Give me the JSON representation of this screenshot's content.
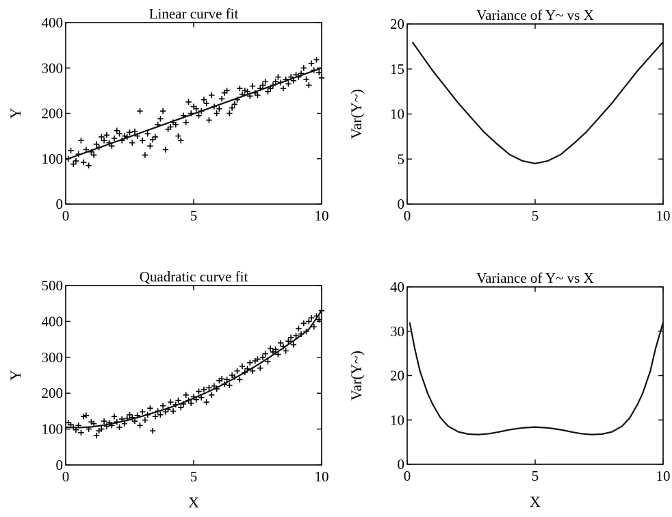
{
  "chart_data": [
    {
      "type": "scatter",
      "title": "Linear curve fit",
      "xlabel": "",
      "ylabel": "Y",
      "xlim": [
        0,
        10
      ],
      "ylim": [
        0,
        400
      ],
      "xticks": [
        0,
        5,
        10
      ],
      "yticks": [
        0,
        100,
        200,
        300,
        400
      ],
      "grid": false,
      "series": [
        {
          "kind": "points",
          "marker": "plus",
          "x": [
            0.1,
            0.2,
            0.3,
            0.4,
            0.5,
            0.6,
            0.7,
            0.8,
            0.9,
            1.0,
            1.1,
            1.2,
            1.3,
            1.4,
            1.5,
            1.6,
            1.7,
            1.8,
            1.9,
            2.0,
            2.1,
            2.2,
            2.3,
            2.4,
            2.5,
            2.6,
            2.7,
            2.8,
            2.9,
            3.0,
            3.1,
            3.2,
            3.3,
            3.4,
            3.5,
            3.6,
            3.7,
            3.8,
            3.9,
            4.0,
            4.1,
            4.2,
            4.3,
            4.4,
            4.5,
            4.6,
            4.7,
            4.8,
            4.9,
            5.0,
            5.1,
            5.2,
            5.3,
            5.4,
            5.5,
            5.6,
            5.7,
            5.8,
            5.9,
            6.0,
            6.1,
            6.2,
            6.3,
            6.4,
            6.5,
            6.6,
            6.7,
            6.8,
            6.9,
            7.0,
            7.1,
            7.2,
            7.3,
            7.4,
            7.5,
            7.6,
            7.7,
            7.8,
            7.9,
            8.0,
            8.1,
            8.2,
            8.3,
            8.4,
            8.5,
            8.6,
            8.7,
            8.8,
            8.9,
            9.0,
            9.1,
            9.2,
            9.3,
            9.4,
            9.5,
            9.6,
            9.7,
            9.8,
            9.9,
            10.0
          ],
          "y": [
            100,
            118,
            88,
            95,
            110,
            140,
            92,
            120,
            85,
            115,
            108,
            132,
            125,
            148,
            140,
            152,
            135,
            128,
            145,
            162,
            155,
            140,
            150,
            148,
            158,
            135,
            160,
            150,
            205,
            140,
            108,
            155,
            128,
            142,
            148,
            175,
            188,
            205,
            120,
            165,
            170,
            180,
            175,
            150,
            140,
            195,
            180,
            225,
            200,
            215,
            210,
            195,
            205,
            230,
            222,
            185,
            240,
            215,
            200,
            210,
            232,
            245,
            250,
            200,
            212,
            220,
            230,
            255,
            242,
            250,
            248,
            238,
            260,
            245,
            240,
            255,
            262,
            270,
            248,
            255,
            262,
            270,
            280,
            268,
            255,
            275,
            265,
            280,
            272,
            285,
            280,
            288,
            300,
            275,
            262,
            310,
            295,
            318,
            290,
            278
          ]
        },
        {
          "kind": "line",
          "x": [
            0,
            10
          ],
          "y": [
            98,
            300
          ]
        }
      ]
    },
    {
      "type": "line",
      "title": "Variance of Y~ vs X",
      "xlabel": "",
      "ylabel": "Var(Y~)",
      "xlim": [
        0,
        10
      ],
      "ylim": [
        0,
        20
      ],
      "xticks": [
        0,
        5,
        10
      ],
      "yticks": [
        0,
        5,
        10,
        15,
        20
      ],
      "grid": false,
      "series": [
        {
          "kind": "line",
          "x": [
            0.2,
            0.6,
            1.0,
            1.5,
            2.0,
            2.5,
            3.0,
            3.5,
            4.0,
            4.5,
            5.0,
            5.5,
            6.0,
            6.5,
            7.0,
            7.5,
            8.0,
            8.5,
            9.0,
            9.5,
            10.0
          ],
          "y": [
            18.0,
            16.4,
            14.8,
            13.0,
            11.2,
            9.6,
            8.0,
            6.7,
            5.5,
            4.8,
            4.5,
            4.8,
            5.5,
            6.7,
            8.0,
            9.6,
            11.2,
            13.0,
            14.8,
            16.4,
            18.0
          ]
        }
      ]
    },
    {
      "type": "scatter",
      "title": "Quadratic curve fit",
      "xlabel": "X",
      "ylabel": "Y",
      "xlim": [
        0,
        10
      ],
      "ylim": [
        0,
        500
      ],
      "xticks": [
        0,
        5,
        10
      ],
      "yticks": [
        0,
        100,
        200,
        300,
        400,
        500
      ],
      "grid": false,
      "series": [
        {
          "kind": "points",
          "marker": "plus",
          "x": [
            0.1,
            0.2,
            0.3,
            0.4,
            0.5,
            0.6,
            0.7,
            0.8,
            0.9,
            1.0,
            1.1,
            1.2,
            1.3,
            1.4,
            1.5,
            1.6,
            1.7,
            1.8,
            1.9,
            2.0,
            2.1,
            2.2,
            2.3,
            2.4,
            2.5,
            2.6,
            2.7,
            2.8,
            2.9,
            3.0,
            3.1,
            3.2,
            3.3,
            3.4,
            3.5,
            3.6,
            3.7,
            3.8,
            3.9,
            4.0,
            4.1,
            4.2,
            4.3,
            4.4,
            4.5,
            4.6,
            4.7,
            4.8,
            4.9,
            5.0,
            5.1,
            5.2,
            5.3,
            5.4,
            5.5,
            5.6,
            5.7,
            5.8,
            5.9,
            6.0,
            6.1,
            6.2,
            6.3,
            6.4,
            6.5,
            6.6,
            6.7,
            6.8,
            6.9,
            7.0,
            7.1,
            7.2,
            7.3,
            7.4,
            7.5,
            7.6,
            7.7,
            7.8,
            7.9,
            8.0,
            8.1,
            8.2,
            8.3,
            8.4,
            8.5,
            8.6,
            8.7,
            8.8,
            8.9,
            9.0,
            9.1,
            9.2,
            9.3,
            9.4,
            9.5,
            9.6,
            9.7,
            9.8,
            9.9,
            10.0
          ],
          "y": [
            118,
            112,
            105,
            98,
            110,
            90,
            135,
            138,
            100,
            120,
            115,
            82,
            95,
            100,
            122,
            108,
            118,
            110,
            135,
            120,
            105,
            128,
            115,
            130,
            140,
            132,
            122,
            138,
            110,
            148,
            125,
            140,
            158,
            95,
            135,
            150,
            140,
            165,
            148,
            155,
            175,
            150,
            168,
            180,
            160,
            170,
            195,
            180,
            172,
            190,
            182,
            205,
            188,
            210,
            175,
            215,
            195,
            220,
            212,
            235,
            240,
            225,
            238,
            222,
            250,
            245,
            262,
            238,
            275,
            258,
            268,
            285,
            262,
            290,
            295,
            270,
            300,
            310,
            288,
            325,
            315,
            322,
            308,
            340,
            330,
            318,
            345,
            355,
            335,
            360,
            380,
            365,
            395,
            372,
            400,
            410,
            385,
            415,
            405,
            430
          ]
        },
        {
          "kind": "line",
          "x": [
            0,
            0.5,
            1.0,
            1.5,
            2.0,
            2.5,
            3.0,
            3.5,
            4.0,
            4.5,
            5.0,
            5.5,
            6.0,
            6.5,
            7.0,
            7.5,
            8.0,
            8.5,
            9.0,
            9.5,
            10.0
          ],
          "y": [
            105,
            104,
            106,
            111,
            118,
            126,
            136,
            147,
            158,
            171,
            186,
            202,
            219,
            238,
            258,
            279,
            302,
            326,
            351,
            378,
            430
          ]
        }
      ]
    },
    {
      "type": "line",
      "title": "Variance of Y~ vs X",
      "xlabel": "X",
      "ylabel": "Var(Y~)",
      "xlim": [
        0,
        10
      ],
      "ylim": [
        0,
        40
      ],
      "xticks": [
        0,
        5,
        10
      ],
      "yticks": [
        0,
        10,
        20,
        30,
        40
      ],
      "grid": false,
      "series": [
        {
          "kind": "line",
          "x": [
            0.1,
            0.3,
            0.5,
            0.8,
            1.0,
            1.3,
            1.6,
            2.0,
            2.4,
            2.8,
            3.2,
            3.6,
            4.0,
            4.5,
            5.0,
            5.5,
            6.0,
            6.4,
            6.8,
            7.2,
            7.6,
            8.0,
            8.4,
            8.7,
            9.0,
            9.2,
            9.5,
            9.7,
            9.9,
            10.0
          ],
          "y": [
            32,
            26,
            21,
            16,
            13.5,
            10.5,
            8.6,
            7.3,
            6.8,
            6.7,
            6.9,
            7.3,
            7.8,
            8.2,
            8.4,
            8.2,
            7.8,
            7.3,
            6.9,
            6.7,
            6.8,
            7.3,
            8.6,
            10.5,
            13.5,
            16,
            21,
            26,
            30,
            32
          ]
        }
      ]
    }
  ]
}
